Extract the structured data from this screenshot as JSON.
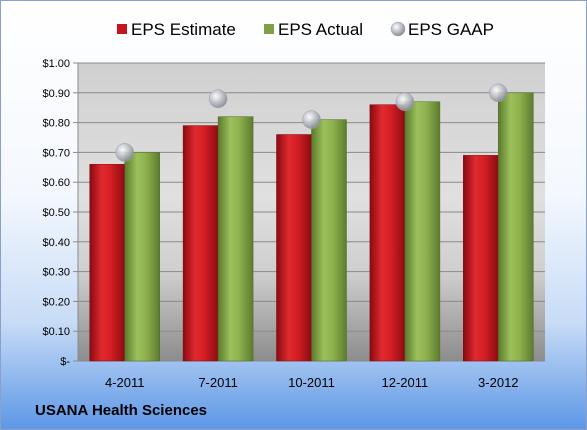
{
  "chart_data": {
    "type": "bar",
    "categories": [
      "4-2011",
      "7-2011",
      "10-2011",
      "12-2011",
      "3-2012"
    ],
    "series": [
      {
        "name": "EPS Estimate",
        "values": [
          0.66,
          0.79,
          0.76,
          0.86,
          0.69
        ],
        "color": "#c8141c"
      },
      {
        "name": "EPS Actual",
        "values": [
          0.7,
          0.82,
          0.81,
          0.87,
          0.9
        ],
        "color": "#7fa046"
      },
      {
        "name": "EPS GAAP",
        "values": [
          0.7,
          0.88,
          0.81,
          0.87,
          0.9
        ],
        "color": "#b9bec6",
        "marker": "sphere"
      }
    ],
    "y_ticks": [
      "$-",
      "$0.10",
      "$0.20",
      "$0.30",
      "$0.40",
      "$0.50",
      "$0.60",
      "$0.70",
      "$0.80",
      "$0.90",
      "$1.00"
    ],
    "ylim": [
      0,
      1.0
    ],
    "grid": true,
    "legend": "top-center"
  },
  "footer": {
    "company": "USANA Health Sciences"
  }
}
